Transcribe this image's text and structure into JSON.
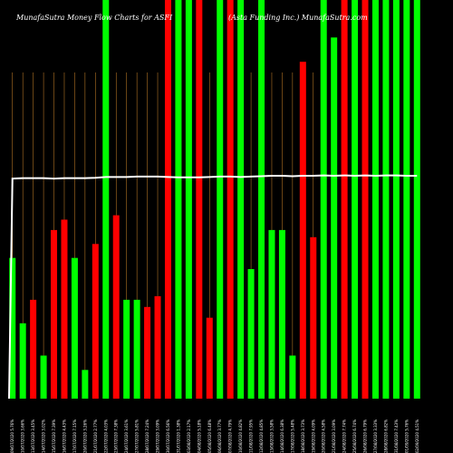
{
  "chart_data": {
    "type": "bar",
    "title": "MunafaSutra  Money Flow  Charts for ASFI",
    "subtitle": "(Asta  Funding  Inc.) MunafaSutra.com",
    "colors": {
      "up": "#00ff00",
      "down": "#ff0000",
      "line": "#ffffff",
      "grid": "#d38a2b",
      "background": "#000000"
    },
    "ylim": [
      0,
      100
    ],
    "categories": [
      "09/07/2020 5.76%",
      "10/07/2020 3.66%",
      "13/07/2020 3.45%",
      "14/07/2020 3.02%",
      "15/07/2020 7.39%",
      "16/07/2020 4.43%",
      "17/07/2020 7.15%",
      "20/07/2020 3.26%",
      "21/07/2020 2.77%",
      "22/07/2020 4.03%",
      "23/07/2020 7.38%",
      "24/07/2020 3.61%",
      "27/07/2020 5.81%",
      "28/07/2020 7.24%",
      "29/07/2020 3.09%",
      "30/07/2020 6.56%",
      "31/07/2020 1.38%",
      "03/08/2020 2.17%",
      "04/08/2020 5.18%",
      "05/08/2020 6.48%",
      "06/08/2020 3.77%",
      "07/08/2020 4.79%",
      "10/08/2020 4.82%",
      "11/08/2020 7.95%",
      "12/08/2020 4.85%",
      "13/08/2020 3.58%",
      "14/08/2020 6.38%",
      "17/08/2020 5.48%",
      "18/08/2020 3.73%",
      "19/08/2020 4.09%",
      "20/08/2020 4.58%",
      "21/08/2020 3.09%",
      "24/08/2020 7.74%",
      "25/08/2020 6.74%",
      "26/08/2020 6.79%",
      "27/08/2020 3.33%",
      "28/08/2020 6.82%",
      "31/08/2020 7.43%",
      "01/09/2020 5.76%",
      "02/09/2020 4.51%"
    ],
    "values": [
      35.3,
      18.9,
      24.8,
      10.8,
      42.3,
      44.9,
      35.3,
      7.2,
      38.8,
      100,
      46.0,
      24.8,
      24.8,
      23.0,
      25.7,
      100,
      100,
      100,
      100,
      20.3,
      100,
      100,
      100,
      32.5,
      100,
      42.3,
      42.3,
      10.8,
      84.5,
      40.5,
      100,
      90.6,
      100,
      100,
      100,
      100,
      100,
      100,
      100,
      100
    ],
    "direction": [
      "up",
      "up",
      "down",
      "up",
      "down",
      "down",
      "up",
      "up",
      "down",
      "up",
      "down",
      "up",
      "up",
      "down",
      "down",
      "down",
      "up",
      "up",
      "down",
      "down",
      "up",
      "down",
      "up",
      "up",
      "up",
      "up",
      "up",
      "up",
      "down",
      "down",
      "up",
      "up",
      "down",
      "up",
      "down",
      "up",
      "up",
      "up",
      "up",
      "up"
    ],
    "line_values": [
      55.2,
      55.3,
      55.3,
      55.3,
      55.2,
      55.3,
      55.3,
      55.3,
      55.4,
      55.6,
      55.6,
      55.6,
      55.7,
      55.7,
      55.7,
      55.6,
      55.5,
      55.5,
      55.5,
      55.6,
      55.7,
      55.7,
      55.6,
      55.7,
      55.8,
      55.9,
      55.9,
      55.8,
      55.9,
      55.9,
      56.0,
      55.9,
      56.0,
      55.9,
      56.0,
      55.9,
      56.0,
      56.0,
      55.9,
      55.9
    ],
    "line_start": 0
  }
}
